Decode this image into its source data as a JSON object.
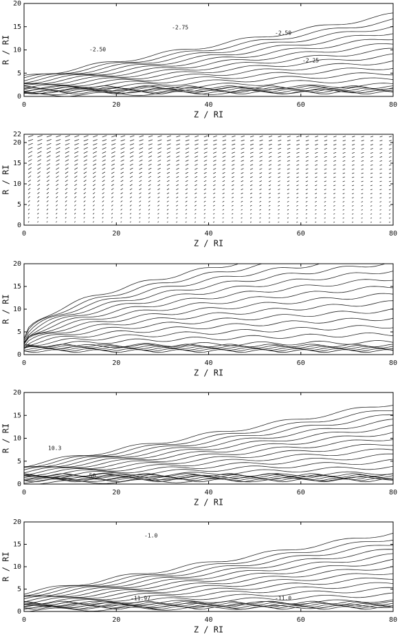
{
  "chart_data": [
    {
      "type": "contour",
      "xlabel": "Z / RI",
      "ylabel": "R / RI",
      "xlim": [
        0,
        80
      ],
      "ylim": [
        0,
        20
      ],
      "xticks": [
        0,
        20,
        40,
        60,
        80
      ],
      "yticks": [
        0,
        5,
        10,
        15,
        20
      ],
      "annotations": [
        "-2.75",
        "-2.50",
        "-2.50",
        "-2.25"
      ]
    },
    {
      "type": "vector",
      "xlabel": "Z / RI",
      "ylabel": "R / RI",
      "xlim": [
        0,
        80
      ],
      "ylim": [
        0,
        22
      ],
      "xticks": [
        0,
        20,
        40,
        60,
        80
      ],
      "yticks": [
        0,
        5,
        10,
        15,
        20,
        22
      ]
    },
    {
      "type": "contour",
      "xlabel": "Z / RI",
      "ylabel": "R / RI",
      "xlim": [
        0,
        80
      ],
      "ylim": [
        0,
        20
      ],
      "xticks": [
        0,
        20,
        40,
        60,
        80
      ],
      "yticks": [
        0,
        5,
        10,
        15,
        20
      ]
    },
    {
      "type": "contour",
      "xlabel": "Z / RI",
      "ylabel": "R / RI",
      "xlim": [
        0,
        80
      ],
      "ylim": [
        0,
        20
      ],
      "xticks": [
        0,
        20,
        40,
        60,
        80
      ],
      "yticks": [
        0,
        5,
        10,
        15,
        20
      ],
      "annotations": [
        "10.3",
        "-.50"
      ]
    },
    {
      "type": "contour",
      "xlabel": "Z / RI",
      "ylabel": "R / RI",
      "xlim": [
        0,
        80
      ],
      "ylim": [
        0,
        20
      ],
      "xticks": [
        0,
        20,
        40,
        60,
        80
      ],
      "yticks": [
        0,
        5,
        10,
        15,
        20
      ],
      "annotations": [
        "-1.0",
        "-11.97",
        "-11.0"
      ]
    }
  ]
}
